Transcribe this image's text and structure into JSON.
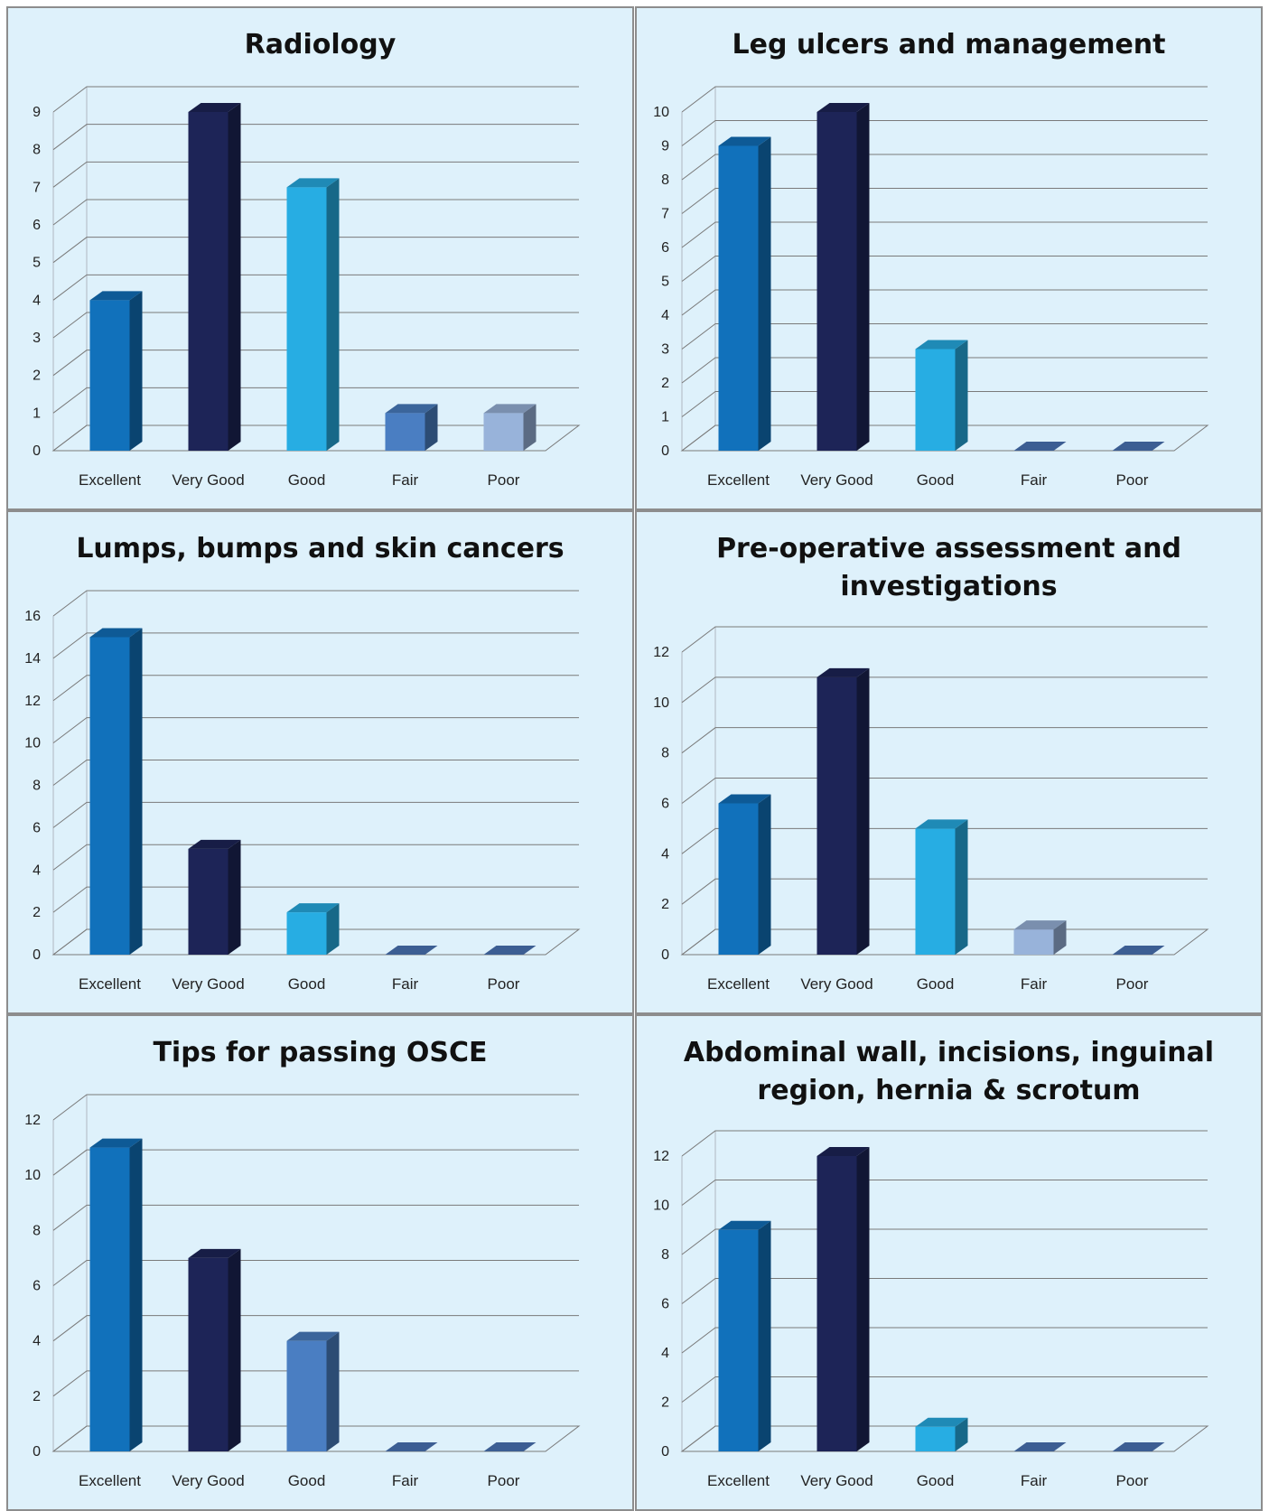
{
  "chart_data": [
    {
      "type": "bar",
      "title_lines": [
        "Radiology"
      ],
      "categories": [
        "Excellent",
        "Very Good",
        "Good",
        "Fair",
        "Poor"
      ],
      "values": [
        4,
        9,
        7,
        1,
        1
      ],
      "ylim": [
        0,
        9
      ],
      "yticks": [
        0,
        1,
        2,
        3,
        4,
        5,
        6,
        7,
        8,
        9
      ],
      "bar_colors": [
        "#1171bb",
        "#1d2457",
        "#27ade3",
        "#4a7ec2",
        "#98b3da"
      ],
      "grid": true
    },
    {
      "type": "bar",
      "title_lines": [
        "Leg ulcers and management"
      ],
      "categories": [
        "Excellent",
        "Very Good",
        "Good",
        "Fair",
        "Poor"
      ],
      "values": [
        9,
        10,
        3,
        0,
        0
      ],
      "ylim": [
        0,
        10
      ],
      "yticks": [
        0,
        1,
        2,
        3,
        4,
        5,
        6,
        7,
        8,
        9,
        10
      ],
      "bar_colors": [
        "#1171bb",
        "#1d2457",
        "#27ade3",
        "#4a7ec2",
        "#98b3da"
      ],
      "grid": true
    },
    {
      "type": "bar",
      "title_lines": [
        "Lumps, bumps and skin cancers"
      ],
      "categories": [
        "Excellent",
        "Very Good",
        "Good",
        "Fair",
        "Poor"
      ],
      "values": [
        15,
        5,
        2,
        0,
        0
      ],
      "ylim": [
        0,
        16
      ],
      "yticks": [
        0,
        2,
        4,
        6,
        8,
        10,
        12,
        14,
        16
      ],
      "bar_colors": [
        "#1171bb",
        "#1d2457",
        "#27ade3",
        "#4a7ec2",
        "#98b3da"
      ],
      "grid": true
    },
    {
      "type": "bar",
      "title_lines": [
        "Pre-operative assessment and",
        "investigations"
      ],
      "categories": [
        "Excellent",
        "Very Good",
        "Good",
        "Fair",
        "Poor"
      ],
      "values": [
        6,
        11,
        5,
        1,
        0
      ],
      "ylim": [
        0,
        12
      ],
      "yticks": [
        0,
        2,
        4,
        6,
        8,
        10,
        12
      ],
      "bar_colors": [
        "#1171bb",
        "#1d2457",
        "#27ade3",
        "#98b3da",
        "#4a7ec2"
      ],
      "grid": true
    },
    {
      "type": "bar",
      "title_lines": [
        "Tips for passing OSCE"
      ],
      "categories": [
        "Excellent",
        "Very Good",
        "Good",
        "Fair",
        "Poor"
      ],
      "values": [
        11,
        7,
        4,
        0,
        0
      ],
      "ylim": [
        0,
        12
      ],
      "yticks": [
        0,
        2,
        4,
        6,
        8,
        10,
        12
      ],
      "bar_colors": [
        "#1171bb",
        "#1d2457",
        "#4a7ec2",
        "#4a7ec2",
        "#4a7ec2"
      ],
      "grid": true
    },
    {
      "type": "bar",
      "title_lines": [
        "Abdominal wall, incisions, inguinal",
        "region, hernia & scrotum"
      ],
      "categories": [
        "Excellent",
        "Very Good",
        "Good",
        "Fair",
        "Poor"
      ],
      "values": [
        9,
        12,
        1,
        0,
        0
      ],
      "ylim": [
        0,
        12
      ],
      "yticks": [
        0,
        2,
        4,
        6,
        8,
        10,
        12
      ],
      "bar_colors": [
        "#1171bb",
        "#1d2457",
        "#27ade3",
        "#4a7ec2",
        "#4a7ec2"
      ],
      "grid": true
    }
  ]
}
